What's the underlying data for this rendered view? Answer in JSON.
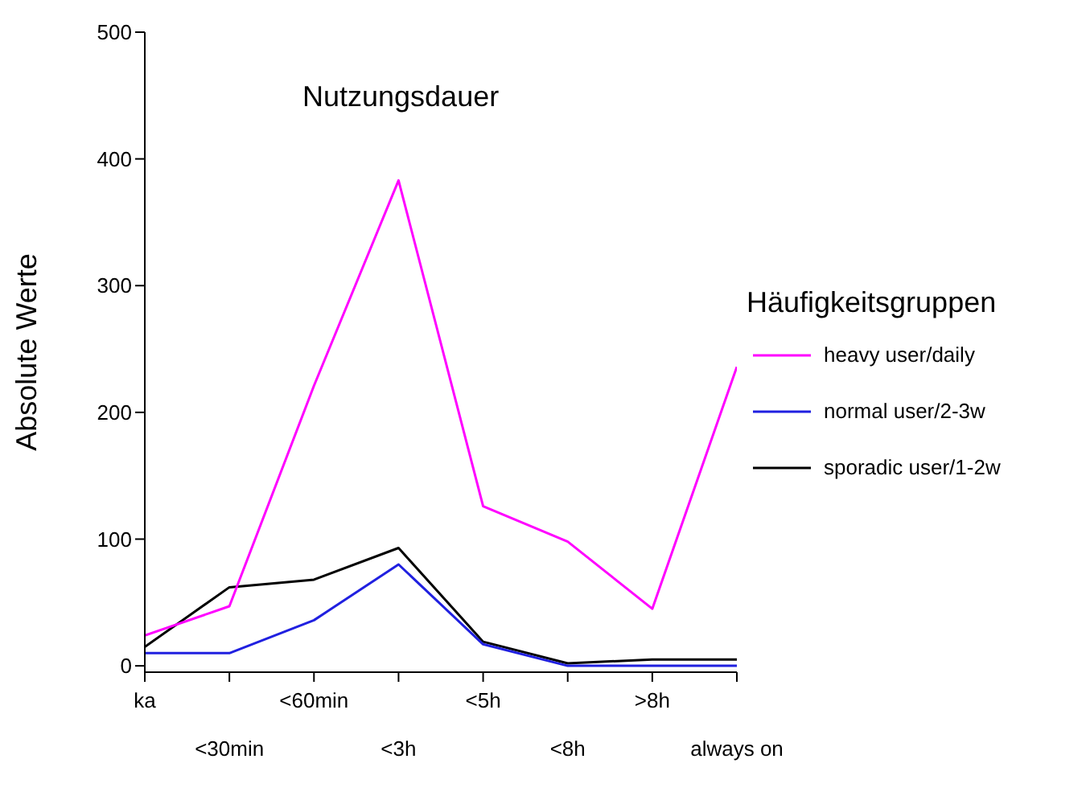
{
  "chart_data": {
    "type": "line",
    "title": "Nutzungsdauer",
    "ylabel": "Absolute Werte",
    "legend_title": "Häufigkeitsgruppen",
    "categories": [
      "ka",
      "<30min",
      "<60min",
      "<3h",
      "<5h",
      "<8h",
      ">8h",
      "always on"
    ],
    "series": [
      {
        "name": "sporadic user/1-2w",
        "color": "#000000",
        "values": [
          15,
          62,
          68,
          93,
          19,
          2,
          5,
          5
        ]
      },
      {
        "name": "normal user/2-3w",
        "color": "#2020e0",
        "values": [
          10,
          10,
          36,
          80,
          17,
          0,
          0,
          0
        ]
      },
      {
        "name": "heavy user/daily",
        "color": "#ff00ff",
        "values": [
          24,
          47,
          221,
          383,
          126,
          98,
          45,
          236
        ]
      }
    ],
    "ylim": [
      -5,
      500
    ],
    "yticks": [
      0,
      100,
      200,
      300,
      400,
      500
    ],
    "grid": false,
    "legend": "right",
    "marker": "none",
    "line_style": "solid"
  }
}
